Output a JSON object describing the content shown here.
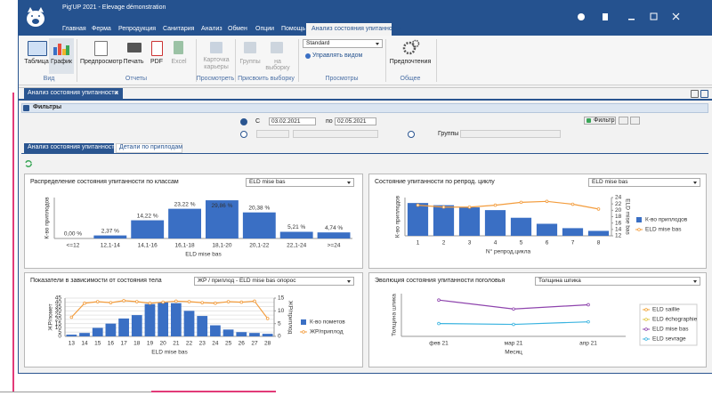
{
  "window": {
    "title": "Pig'UP 2021 - Elevage démonstration",
    "menu": [
      "Главная",
      "Ферма",
      "Репродукция",
      "Санитария",
      "Анализ",
      "Обмен",
      "Опции",
      "Помощь"
    ],
    "active_tab": "Анализ состояния упитанности"
  },
  "ribbon": {
    "groups": [
      {
        "label": "Вид",
        "buttons": [
          "Таблица",
          "График"
        ]
      },
      {
        "label": "Отчеты",
        "buttons": [
          "Предпросмотр",
          "Печать",
          "PDF",
          "Excel"
        ]
      },
      {
        "label": "Просмотреть",
        "buttons": [
          "Карточка карьеры"
        ]
      },
      {
        "label": "Присвоить выборку",
        "buttons": [
          "Группы",
          "на выборку"
        ]
      },
      {
        "label": "Просмотры",
        "buttons": [
          "Standard",
          "Управлять видом"
        ]
      },
      {
        "label": "Общее",
        "buttons": [
          "Предпочтения"
        ]
      }
    ]
  },
  "document_tab": "Анализ состояния упитанности",
  "filters": {
    "header": "Фильтры",
    "from_label": "С",
    "from_date": "03.02.2021",
    "to_label": "по",
    "to_date": "02.05.2021",
    "filter_button": "Фильтр",
    "groups_label": "Группы"
  },
  "subtabs": [
    "Анализ состояния упитанности",
    "Детали по приплодам"
  ],
  "chart_data": [
    {
      "type": "bar",
      "title": "Распределение состояния упитанности по классам",
      "selector": "ELD mise bas",
      "y_label": "К-во приплодов",
      "x_label": "ELD mise bas",
      "categories": [
        "<=12",
        "12,1-14",
        "14,1-16",
        "16,1-18",
        "18,1-20",
        "20,1-22",
        "22,1-24",
        ">=24"
      ],
      "values": [
        0,
        2.37,
        14.22,
        23.22,
        29.86,
        20.38,
        5.21,
        4.74
      ],
      "value_labels": [
        "0,00 %",
        "2,37 %",
        "14,22 %",
        "23,22 %",
        "29,86 %",
        "20,38 %",
        "5,21 %",
        "4,74 %"
      ],
      "color": "#3a6fc4",
      "ylim": [
        0,
        32
      ]
    },
    {
      "type": "combo",
      "title": "Состояние упитанности по репрод. циклу",
      "selector": "ELD mise bas",
      "x_label": "N° репрод.цикла",
      "y_label": "К-во приплодов",
      "y2_label": "ELD mise bas",
      "categories": [
        "1",
        "2",
        "3",
        "4",
        "5",
        "6",
        "7",
        "8"
      ],
      "series": [
        {
          "name": "К-во приплодов",
          "type": "bar",
          "color": "#3a6fc4",
          "values": [
            60,
            56,
            52,
            47,
            33,
            22,
            14,
            9
          ]
        },
        {
          "name": "ELD mise bas",
          "type": "line",
          "axis": "y2",
          "color": "#f39c3c",
          "values": [
            21.6,
            21,
            21,
            21.6,
            22.5,
            22.8,
            21.9,
            20.4
          ]
        }
      ],
      "ylim": [
        0,
        70
      ],
      "y2lim": [
        12,
        24
      ],
      "y2ticks": [
        12,
        14,
        16,
        18,
        20,
        22,
        24
      ]
    },
    {
      "type": "combo",
      "title": "Показатели в зависимости от состояния тела",
      "selector": "ЖР / приплод - ELD mise bas опорос",
      "x_label": "ELD mise bas",
      "y_label": "ЖР/помет",
      "y2_label": "ЖР/приплод",
      "categories": [
        "13",
        "14",
        "15",
        "16",
        "17",
        "18",
        "19",
        "20",
        "21",
        "22",
        "23",
        "24",
        "25",
        "26",
        "27",
        "28"
      ],
      "series": [
        {
          "name": "К-во пометов",
          "type": "bar",
          "color": "#3a6fc4",
          "values": [
            2,
            4,
            10,
            15,
            21,
            25,
            38,
            40,
            39,
            30,
            24,
            13,
            8,
            5,
            4,
            3
          ]
        },
        {
          "name": "ЖР/приплод",
          "type": "line",
          "axis": "y2",
          "color": "#f39c3c",
          "values": [
            7.5,
            13,
            13.6,
            13.2,
            14,
            13.6,
            13,
            13.4,
            13.8,
            13.6,
            13.2,
            13,
            13.6,
            13.4,
            13.8,
            7
          ]
        }
      ],
      "ylim": [
        0,
        45
      ],
      "yticks": [
        0,
        5,
        10,
        15,
        20,
        25,
        30,
        35,
        40,
        45
      ],
      "y2lim": [
        0,
        15
      ],
      "y2ticks": [
        0,
        5,
        10,
        15
      ]
    },
    {
      "type": "line",
      "title": "Эволюция состояния упитанности поголовья",
      "selector": "Толщина шпика",
      "x_label": "Месяц",
      "y_label": "Толщина шпика",
      "categories": [
        "фев 21",
        "мар 21",
        "апр 21"
      ],
      "series": [
        {
          "name": "ELD saillie",
          "color": "#f0a030",
          "values": [
            null,
            null,
            null
          ]
        },
        {
          "name": "ELD échographie",
          "color": "#e0c540",
          "values": [
            null,
            null,
            null
          ]
        },
        {
          "name": "ELD mise bas",
          "color": "#8e44ad",
          "values": [
            20.5,
            18.4,
            19.4
          ]
        },
        {
          "name": "ELD sevrage",
          "color": "#3bb4e0",
          "values": [
            15,
            14.8,
            15.4
          ]
        }
      ],
      "ylim": [
        12,
        22
      ]
    }
  ]
}
